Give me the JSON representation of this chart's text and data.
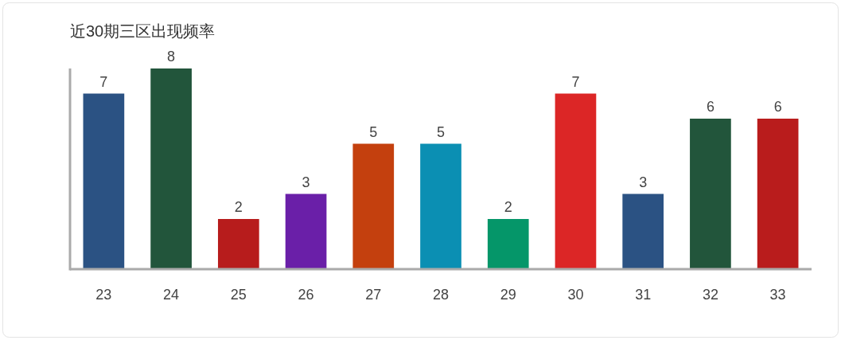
{
  "chart_data": {
    "type": "bar",
    "title": "近30期三区出现频率",
    "categories": [
      "23",
      "24",
      "25",
      "26",
      "27",
      "28",
      "29",
      "30",
      "31",
      "32",
      "33"
    ],
    "values": [
      7,
      8,
      2,
      3,
      5,
      5,
      2,
      7,
      3,
      6,
      6
    ],
    "colors": [
      "#2b5283",
      "#22553b",
      "#b71c1c",
      "#6a1fa8",
      "#c4400e",
      "#0b8fb3",
      "#059669",
      "#dc2626",
      "#2b5283",
      "#22553b",
      "#b91c1c"
    ],
    "data_labels": true
  }
}
